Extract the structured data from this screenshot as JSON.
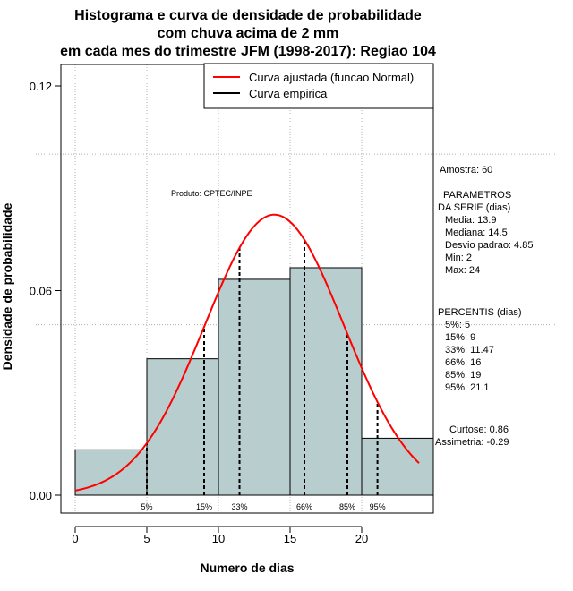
{
  "chart_data": {
    "type": "histogram",
    "title_lines": [
      "Histograma e curva de densidade de probabilidade",
      "com chuva acima de 2 mm",
      "em cada mes do trimestre JFM (1998-2017): Regiao 104"
    ],
    "xlabel": "Numero de dias",
    "ylabel": "Densidade de probabilidade",
    "xlim": [
      -1,
      25
    ],
    "ylim": [
      -0.002,
      0.12
    ],
    "x_ticks": [
      0,
      5,
      10,
      15,
      20
    ],
    "y_ticks": [
      0.0,
      0.06,
      0.12
    ],
    "y_tick_labels": [
      "0.00",
      "0.06",
      "0.12"
    ],
    "grid": true,
    "grid_y": [
      0.05,
      0.1
    ],
    "grid_x": [
      0,
      5,
      10,
      15,
      20
    ],
    "bins": [
      {
        "x0": 0,
        "x1": 5,
        "density": 0.0133
      },
      {
        "x0": 5,
        "x1": 10,
        "density": 0.04
      },
      {
        "x0": 10,
        "x1": 15,
        "density": 0.0633
      },
      {
        "x0": 15,
        "x1": 20,
        "density": 0.0667
      },
      {
        "x0": 20,
        "x1": 25,
        "density": 0.0167
      }
    ],
    "bar_color": "#b8cdcd",
    "fitted_curve": {
      "name": "Curva ajustada (funcao Normal)",
      "color": "#ff0000",
      "mean": 13.9,
      "sd": 4.85,
      "x_range": [
        0,
        24
      ]
    },
    "empirical_curve": {
      "name": "Curva empirica",
      "color": "#000000"
    },
    "legend_position": "top-right",
    "percentile_lines": [
      {
        "x": 5,
        "label": "5%"
      },
      {
        "x": 9,
        "label": "15%"
      },
      {
        "x": 11.47,
        "label": "33%"
      },
      {
        "x": 16,
        "label": "66%"
      },
      {
        "x": 19,
        "label": "85%"
      },
      {
        "x": 21.1,
        "label": "95%"
      }
    ],
    "annotation": "Produto: CPTEC/INPE",
    "side_stats": {
      "sample": "Amostra: 60",
      "params_header_1": "PARAMETROS",
      "params_header_2": "DA SERIE (dias)",
      "params": [
        "Media: 13.9",
        "Mediana: 14.5",
        "Desvio padrao: 4.85",
        "Min: 2",
        "Max: 24"
      ],
      "percentis_header": "PERCENTIS (dias)",
      "percentis": [
        "5%: 5",
        "15%: 9",
        "33%: 11.47",
        "66%: 16",
        "85%: 19",
        "95%: 21.1"
      ],
      "curtose": "Curtose: 0.86",
      "assimetria": "Assimetria: -0.29"
    }
  }
}
